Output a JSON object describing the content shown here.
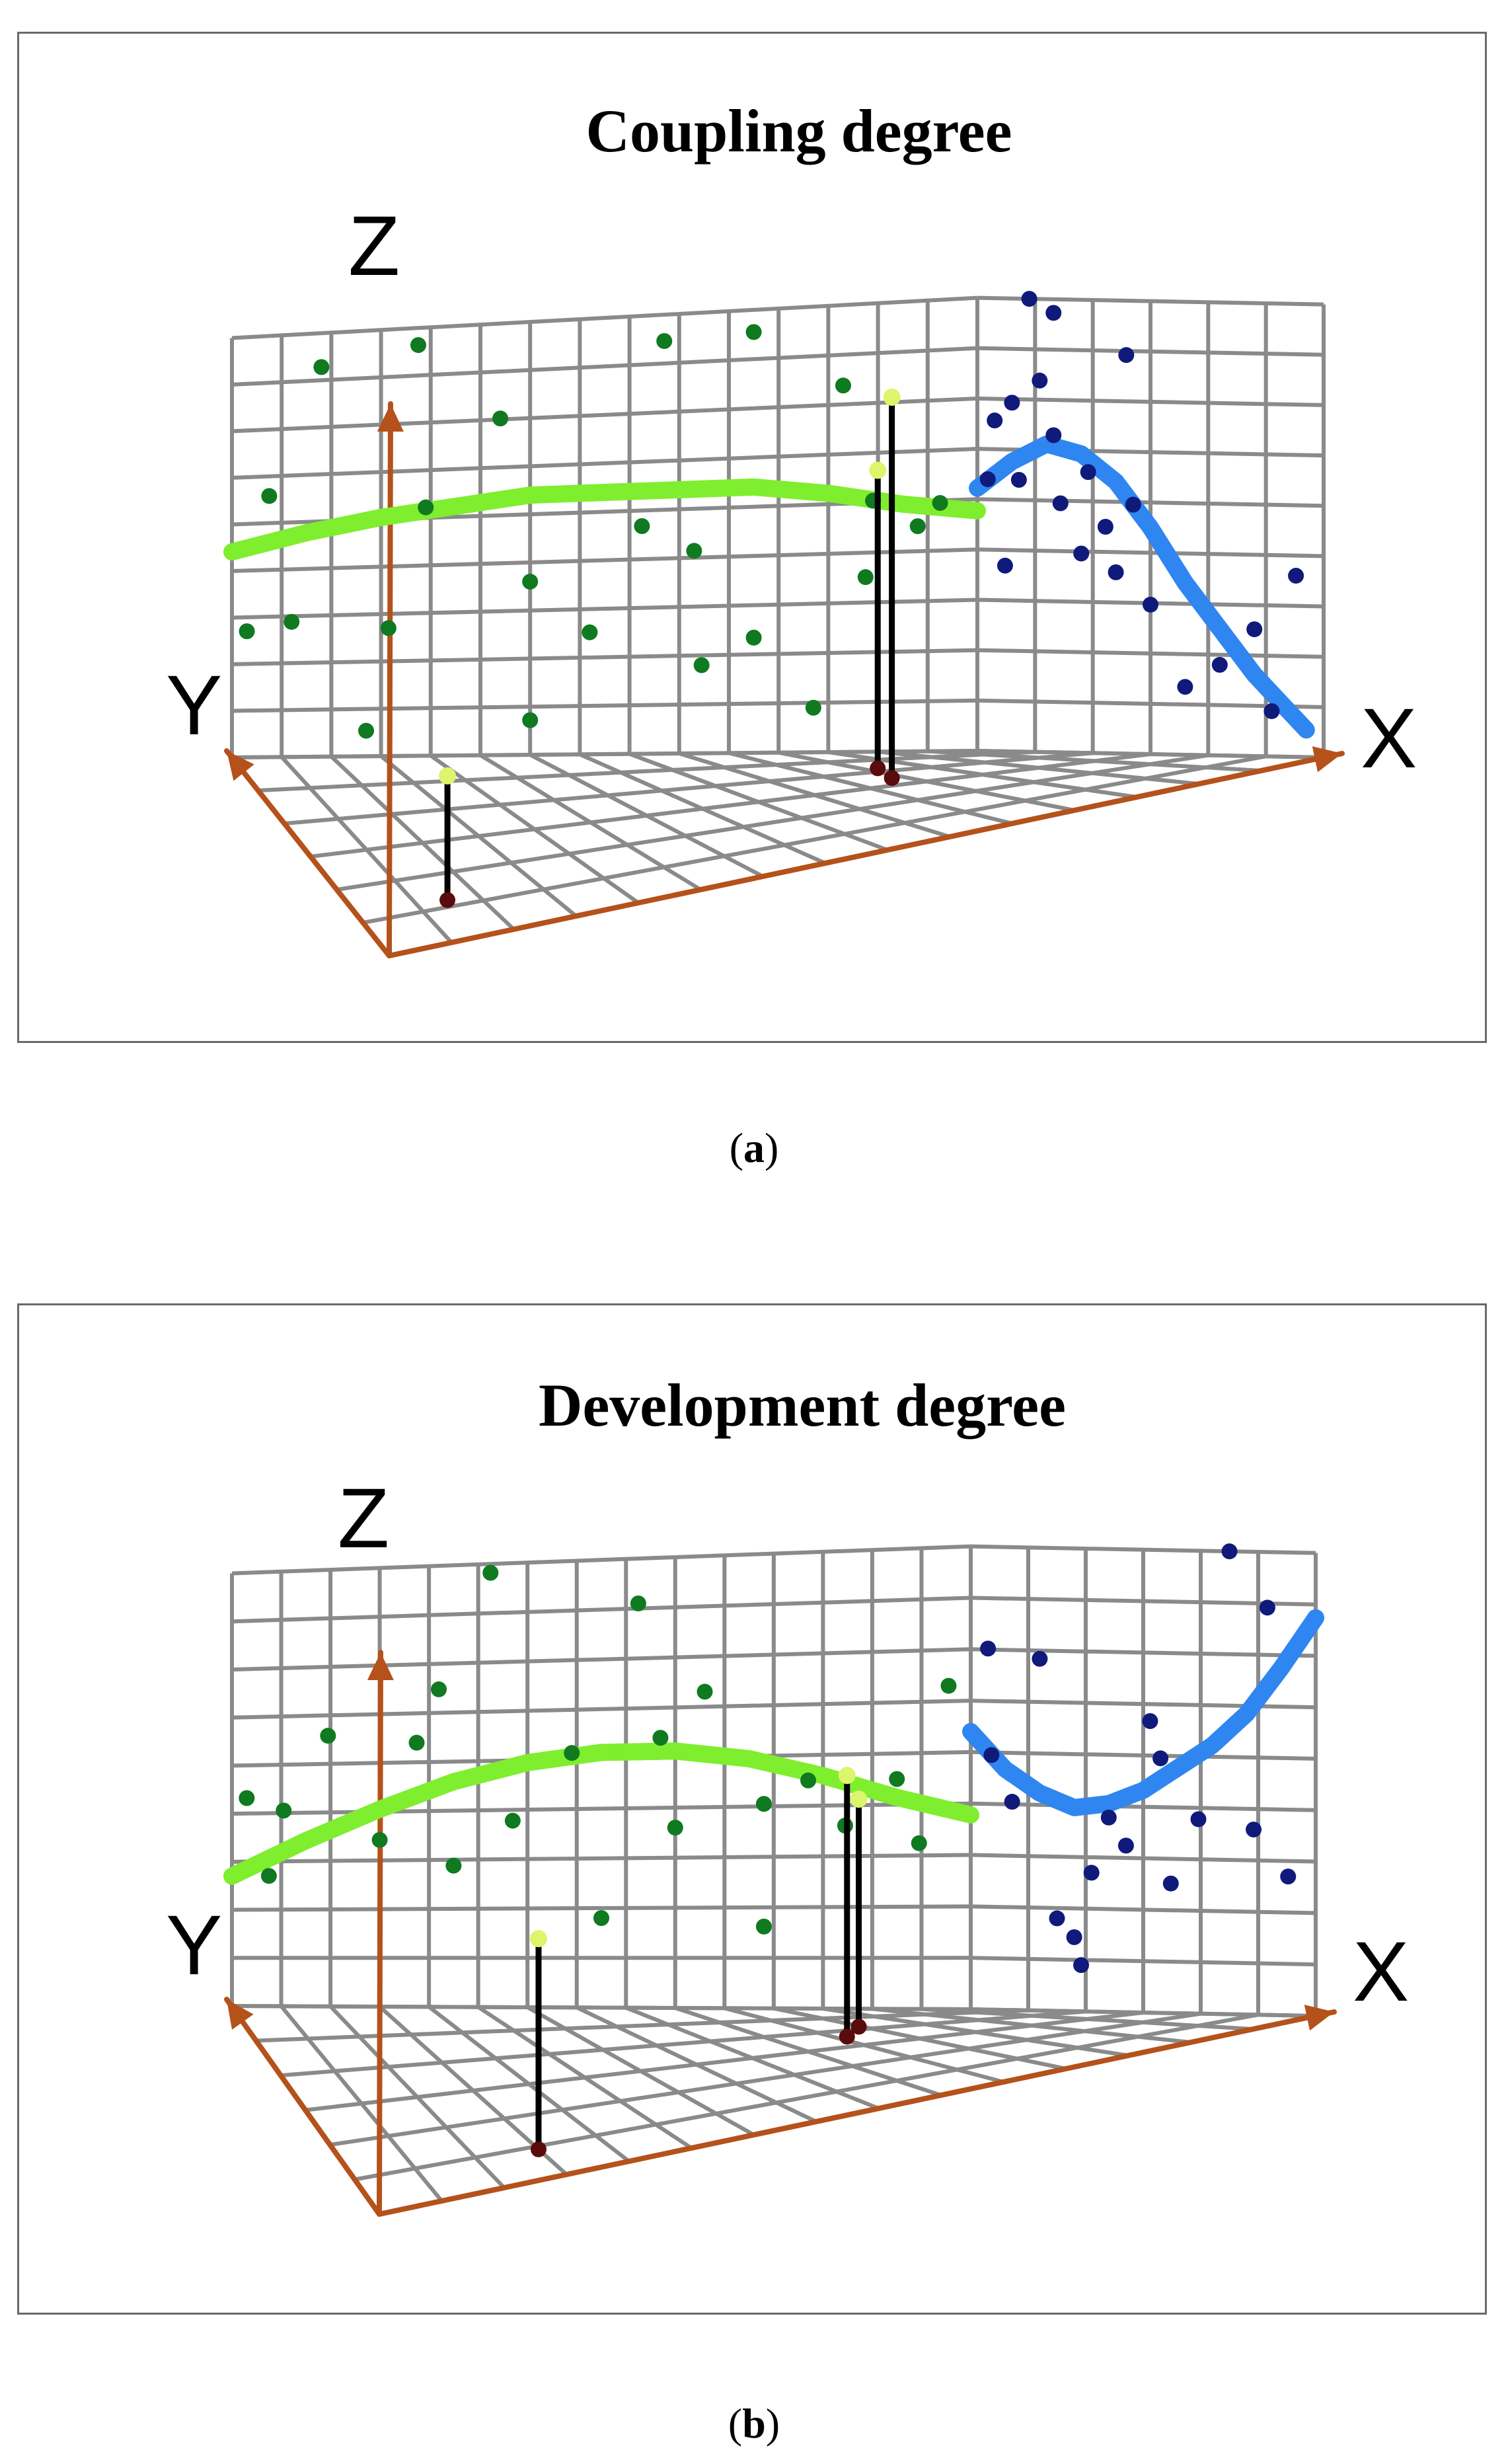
{
  "colors": {
    "axis": "#b5511b",
    "grid": "#8a8a8a",
    "points_side": "#0f7a1f",
    "points_wall": "#101a7a",
    "trend_side": "#7fee2e",
    "trend_wall": "#2f86f0",
    "stem": "#000000",
    "stem_top": "#ddf56a",
    "stem_base": "#5a0b0b"
  },
  "figure": {
    "panels": [
      {
        "caption_open": "(",
        "caption_letter": "a",
        "caption_close": ")"
      },
      {
        "caption_open": "(",
        "caption_letter": "b",
        "caption_close": ")"
      }
    ]
  },
  "chart_data": [
    {
      "type": "scatter",
      "title": "Coupling degree",
      "axes": {
        "x": "X",
        "y": "Y",
        "z": "Z"
      },
      "grid": true,
      "side_wall_points_yz": [
        [
          0.05,
          0.62
        ],
        [
          0.12,
          0.92
        ],
        [
          0.25,
          0.96
        ],
        [
          0.58,
          0.94
        ],
        [
          0.7,
          0.95
        ],
        [
          0.36,
          0.78
        ],
        [
          0.82,
          0.82
        ],
        [
          0.26,
          0.58
        ],
        [
          0.86,
          0.56
        ],
        [
          0.4,
          0.4
        ],
        [
          0.62,
          0.46
        ],
        [
          0.21,
          0.3
        ],
        [
          0.85,
          0.39
        ],
        [
          0.92,
          0.5
        ],
        [
          0.63,
          0.2
        ],
        [
          0.78,
          0.1
        ],
        [
          0.4,
          0.08
        ],
        [
          0.02,
          0.3
        ],
        [
          0.08,
          0.32
        ],
        [
          0.18,
          0.06
        ],
        [
          0.55,
          0.52
        ],
        [
          0.95,
          0.55
        ],
        [
          0.48,
          0.28
        ],
        [
          0.7,
          0.26
        ]
      ],
      "back_wall_points_xz": [
        [
          0.15,
          1.0
        ],
        [
          0.22,
          0.97
        ],
        [
          0.43,
          0.88
        ],
        [
          0.1,
          0.77
        ],
        [
          0.22,
          0.7
        ],
        [
          0.12,
          0.6
        ],
        [
          0.32,
          0.62
        ],
        [
          0.37,
          0.5
        ],
        [
          0.45,
          0.55
        ],
        [
          0.03,
          0.6
        ],
        [
          0.08,
          0.41
        ],
        [
          0.24,
          0.55
        ],
        [
          0.3,
          0.44
        ],
        [
          0.4,
          0.4
        ],
        [
          0.5,
          0.33
        ],
        [
          0.8,
          0.28
        ],
        [
          0.92,
          0.4
        ],
        [
          0.6,
          0.15
        ],
        [
          0.7,
          0.2
        ],
        [
          0.85,
          0.1
        ],
        [
          0.05,
          0.73
        ],
        [
          0.18,
          0.82
        ]
      ],
      "side_trend_yz": [
        [
          0.0,
          0.49
        ],
        [
          0.1,
          0.53
        ],
        [
          0.2,
          0.56
        ],
        [
          0.3,
          0.58
        ],
        [
          0.4,
          0.6
        ],
        [
          0.5,
          0.6
        ],
        [
          0.6,
          0.6
        ],
        [
          0.7,
          0.6
        ],
        [
          0.8,
          0.58
        ],
        [
          0.9,
          0.55
        ],
        [
          1.0,
          0.53
        ]
      ],
      "back_trend_xz": [
        [
          0.0,
          0.58
        ],
        [
          0.1,
          0.64
        ],
        [
          0.2,
          0.68
        ],
        [
          0.3,
          0.66
        ],
        [
          0.4,
          0.6
        ],
        [
          0.5,
          0.5
        ],
        [
          0.6,
          0.38
        ],
        [
          0.7,
          0.28
        ],
        [
          0.8,
          0.18
        ],
        [
          0.9,
          0.1
        ],
        [
          0.95,
          0.06
        ]
      ],
      "stems_xyz": [
        [
          0.1,
          0.2,
          0.3
        ],
        [
          0.72,
          0.58,
          0.92
        ],
        [
          0.75,
          0.71,
          0.72
        ]
      ]
    },
    {
      "type": "scatter",
      "title": "Development degree",
      "axes": {
        "x": "X",
        "y": "Y",
        "z": "Z"
      },
      "grid": true,
      "side_wall_points_yz": [
        [
          0.35,
          0.98
        ],
        [
          0.55,
          0.9
        ],
        [
          0.28,
          0.72
        ],
        [
          0.25,
          0.6
        ],
        [
          0.46,
          0.57
        ],
        [
          0.58,
          0.6
        ],
        [
          0.13,
          0.62
        ],
        [
          0.02,
          0.48
        ],
        [
          0.2,
          0.38
        ],
        [
          0.38,
          0.42
        ],
        [
          0.6,
          0.4
        ],
        [
          0.72,
          0.45
        ],
        [
          0.78,
          0.5
        ],
        [
          0.9,
          0.5
        ],
        [
          0.93,
          0.36
        ],
        [
          0.3,
          0.32
        ],
        [
          0.5,
          0.2
        ],
        [
          0.72,
          0.18
        ],
        [
          0.07,
          0.45
        ],
        [
          0.64,
          0.7
        ],
        [
          0.83,
          0.4
        ],
        [
          0.05,
          0.3
        ],
        [
          0.97,
          0.7
        ]
      ],
      "back_wall_points_xz": [
        [
          0.75,
          1.0
        ],
        [
          0.86,
          0.88
        ],
        [
          0.05,
          0.78
        ],
        [
          0.2,
          0.76
        ],
        [
          0.52,
          0.63
        ],
        [
          0.55,
          0.55
        ],
        [
          0.06,
          0.55
        ],
        [
          0.4,
          0.42
        ],
        [
          0.45,
          0.36
        ],
        [
          0.35,
          0.3
        ],
        [
          0.58,
          0.28
        ],
        [
          0.25,
          0.2
        ],
        [
          0.3,
          0.16
        ],
        [
          0.32,
          0.1
        ],
        [
          0.82,
          0.4
        ],
        [
          0.92,
          0.3
        ],
        [
          0.66,
          0.42
        ],
        [
          0.12,
          0.45
        ]
      ],
      "side_trend_yz": [
        [
          0.0,
          0.3
        ],
        [
          0.1,
          0.38
        ],
        [
          0.2,
          0.45
        ],
        [
          0.3,
          0.51
        ],
        [
          0.4,
          0.55
        ],
        [
          0.5,
          0.57
        ],
        [
          0.6,
          0.57
        ],
        [
          0.7,
          0.55
        ],
        [
          0.8,
          0.51
        ],
        [
          0.9,
          0.46
        ],
        [
          1.0,
          0.42
        ]
      ],
      "back_trend_xz": [
        [
          0.0,
          0.6
        ],
        [
          0.1,
          0.52
        ],
        [
          0.2,
          0.47
        ],
        [
          0.3,
          0.44
        ],
        [
          0.4,
          0.45
        ],
        [
          0.5,
          0.48
        ],
        [
          0.6,
          0.53
        ],
        [
          0.7,
          0.58
        ],
        [
          0.8,
          0.65
        ],
        [
          0.9,
          0.75
        ],
        [
          1.0,
          0.86
        ]
      ],
      "stems_xyz": [
        [
          0.2,
          0.15,
          0.5
        ],
        [
          0.68,
          0.6,
          0.62
        ],
        [
          0.73,
          0.7,
          0.54
        ]
      ]
    }
  ]
}
